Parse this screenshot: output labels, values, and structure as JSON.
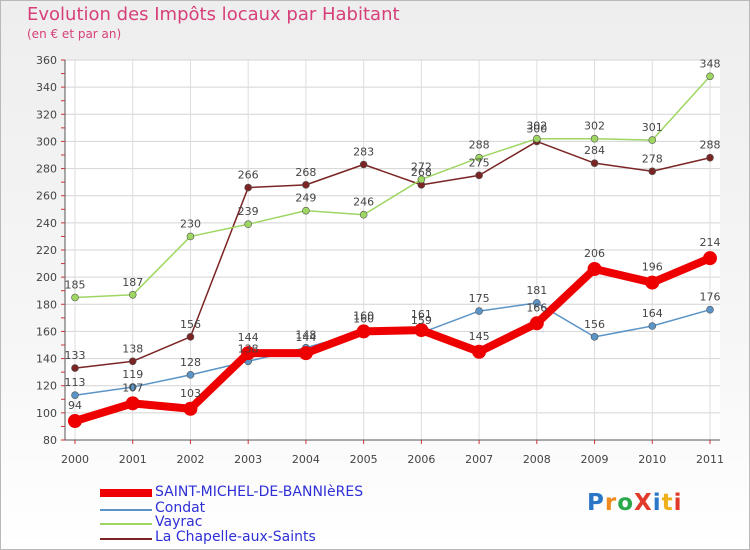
{
  "title": "Evolution des Impôts locaux par Habitant",
  "subtitle": "(en € et par an)",
  "logo": {
    "text": "ProXiti",
    "colors": [
      "#2a77c8",
      "#f08a1c",
      "#2aa84a",
      "#e23a2a",
      "#2a77c8",
      "#f0b01c",
      "#e23a2a"
    ]
  },
  "chart_data": {
    "type": "line",
    "title": "Evolution des Impôts locaux par Habitant",
    "subtitle": "(en € et par an)",
    "xlabel": "",
    "ylabel": "",
    "x": [
      "2000",
      "2001",
      "2002",
      "2003",
      "2004",
      "2005",
      "2006",
      "2007",
      "2008",
      "2009",
      "2010",
      "2011"
    ],
    "ylim": [
      80,
      360
    ],
    "yticks": [
      80,
      100,
      120,
      140,
      160,
      180,
      200,
      220,
      240,
      260,
      280,
      300,
      320,
      340,
      360
    ],
    "grid": true,
    "legend_position": "bottom-left",
    "series": [
      {
        "name": "La Chapelle-aux-Saints",
        "color": "#7a2424",
        "values": [
          133,
          138,
          156,
          266,
          268,
          283,
          268,
          275,
          300,
          284,
          278,
          288
        ],
        "labels": [
          "133",
          "138",
          "156",
          "266",
          "268",
          "283",
          "268",
          "275",
          "300",
          "284",
          "278",
          "288"
        ],
        "thick": false
      },
      {
        "name": "Vayrac",
        "color": "#9ed662",
        "values": [
          185,
          187,
          230,
          239,
          249,
          246,
          272,
          288,
          302,
          302,
          301,
          348
        ],
        "labels": [
          "185",
          "187",
          "230",
          "239",
          "249",
          "246",
          "272",
          "288",
          "302",
          "302",
          "301",
          "348"
        ],
        "thick": false
      },
      {
        "name": "Condat",
        "color": "#5b94c6",
        "values": [
          113,
          119,
          128,
          138,
          148,
          160,
          159,
          175,
          181,
          156,
          164,
          176
        ],
        "labels": [
          "113",
          "119",
          "128",
          "138",
          "148",
          "160",
          "159",
          "175",
          "181",
          "156",
          "164",
          "176"
        ],
        "thick": false
      },
      {
        "name": "SAINT-MICHEL-DE-BANNIèRES",
        "color": "#ee0000",
        "values": [
          94,
          107,
          103,
          144,
          144,
          160,
          161,
          145,
          166,
          206,
          196,
          214
        ],
        "labels": [
          "94",
          "107",
          "103",
          "144",
          "144",
          "160",
          "161",
          "145",
          "166",
          "206",
          "196",
          "214"
        ],
        "thick": true
      }
    ]
  },
  "legend": [
    {
      "label": "SAINT-MICHEL-DE-BANNIèRES",
      "color": "#ee0000",
      "thick": true
    },
    {
      "label": "Condat",
      "color": "#5b94c6",
      "thick": false
    },
    {
      "label": "Vayrac",
      "color": "#9ed662",
      "thick": false
    },
    {
      "label": "La Chapelle-aux-Saints",
      "color": "#7a2424",
      "thick": false
    }
  ]
}
